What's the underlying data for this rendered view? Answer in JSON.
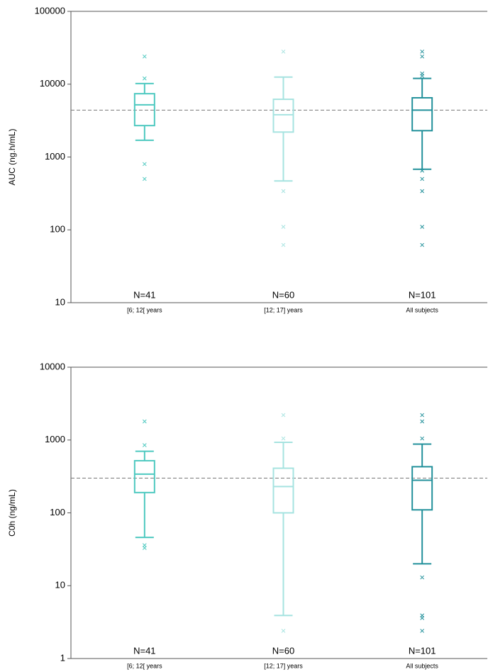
{
  "chart_data": [
    {
      "type": "box",
      "ylabel": "AUC (ng.h/mL)",
      "log_scale": true,
      "ylim": [
        10,
        100000
      ],
      "yticks": [
        10,
        100,
        1000,
        10000,
        100000
      ],
      "categories": [
        "[6; 12[ years",
        "[12; 17] years",
        "All subjects"
      ],
      "n_labels": [
        "N=41",
        "N=60",
        "N=101"
      ],
      "colors": [
        "#4ec9c0",
        "#a6e3e0",
        "#23919b"
      ],
      "whisker_low": [
        1700,
        470,
        680
      ],
      "q1": [
        2700,
        2200,
        2300
      ],
      "median": [
        5200,
        3800,
        4400
      ],
      "q3": [
        7400,
        6200,
        6500
      ],
      "whisker_high": [
        10200,
        12500,
        12000
      ],
      "outliers": [
        [
          24000,
          12000,
          800,
          500
        ],
        [
          28000,
          340,
          110,
          62
        ],
        [
          28000,
          24000,
          14000,
          13000,
          650,
          500,
          340,
          110,
          62
        ]
      ],
      "reference_line": 4400
    },
    {
      "type": "box",
      "ylabel": "C0h (ng/mL)",
      "log_scale": true,
      "ylim": [
        1,
        10000
      ],
      "yticks": [
        1,
        10,
        100,
        1000,
        10000
      ],
      "categories": [
        "[6; 12[ years",
        "[12; 17] years",
        "All subjects"
      ],
      "n_labels": [
        "N=41",
        "N=60",
        "N=101"
      ],
      "colors": [
        "#4ec9c0",
        "#a6e3e0",
        "#23919b"
      ],
      "whisker_low": [
        46,
        3.9,
        20
      ],
      "q1": [
        190,
        100,
        110
      ],
      "median": [
        340,
        230,
        280
      ],
      "q3": [
        520,
        410,
        430
      ],
      "whisker_high": [
        700,
        930,
        880
      ],
      "outliers": [
        [
          1800,
          850,
          36,
          33
        ],
        [
          2200,
          1050,
          2.4
        ],
        [
          2200,
          1800,
          1050,
          13,
          3.9,
          3.6,
          2.4
        ]
      ],
      "reference_line": 300
    }
  ]
}
